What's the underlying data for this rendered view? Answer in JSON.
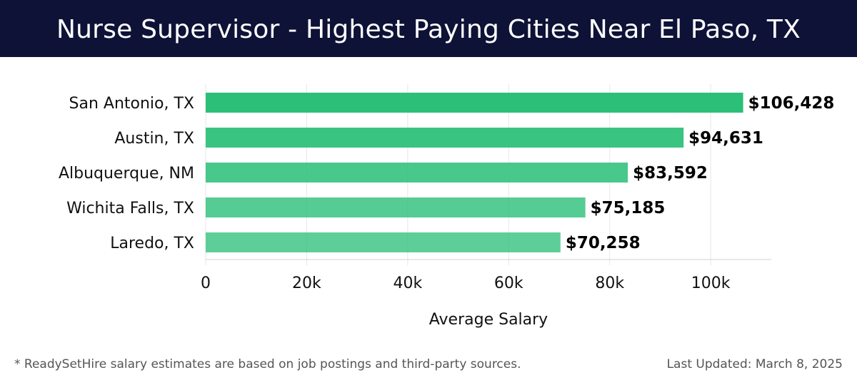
{
  "header": {
    "title": "Nurse Supervisor - Highest Paying Cities Near El Paso, TX"
  },
  "chart_data": {
    "type": "bar",
    "orientation": "horizontal",
    "categories": [
      "San Antonio, TX",
      "Austin, TX",
      "Albuquerque, NM",
      "Wichita Falls, TX",
      "Laredo, TX"
    ],
    "values": [
      106428,
      94631,
      83592,
      75185,
      70258
    ],
    "value_labels": [
      "$106,428",
      "$94,631",
      "$83,592",
      "$75,185",
      "$70,258"
    ],
    "xlabel": "Average Salary",
    "ylabel": "",
    "xlim": [
      0,
      112000
    ],
    "xticks": [
      0,
      20000,
      40000,
      60000,
      80000,
      100000
    ],
    "xtick_labels": [
      "0",
      "20k",
      "40k",
      "60k",
      "80k",
      "100k"
    ],
    "grid": true,
    "colors": {
      "bar": "#2bbf78",
      "label": "#000000",
      "grid": "#e6e6e6"
    }
  },
  "footer": {
    "note": "* ReadySetHire salary estimates are based on job postings and third-party sources.",
    "updated": "Last Updated: March 8, 2025"
  }
}
